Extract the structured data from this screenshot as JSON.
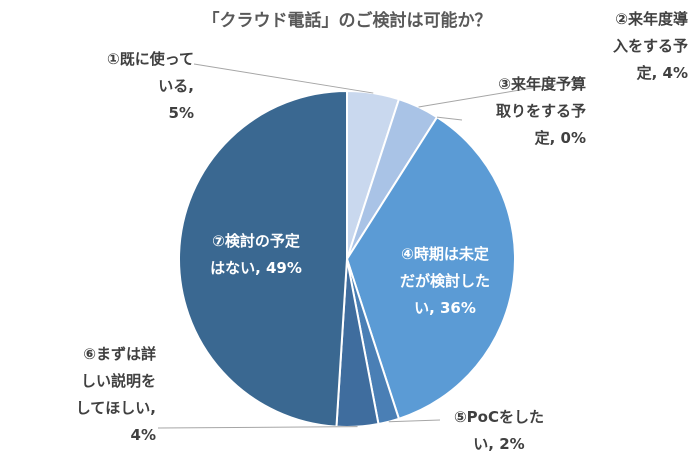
{
  "chart_data": {
    "type": "pie",
    "title": "「クラウド電話」のご検討は可能か？",
    "slices": [
      {
        "label": "①既に使っている",
        "value": 5,
        "color": "#c9d8ee",
        "display": "①既に使って\nいる,\n5%"
      },
      {
        "label": "②来年度導入をする予定",
        "value": 4,
        "color": "#a9c3e6",
        "display": "②来年度導\n入をする予\n定, 4%"
      },
      {
        "label": "③来年度予算取りをする予定",
        "value": 0,
        "color": "#8db2e0",
        "display": "③来年度予算\n取りをする予\n定, 0%"
      },
      {
        "label": "④時期は未定だが検討したい",
        "value": 36,
        "color": "#5b9bd5",
        "display": "④時期は未定\nだが検討した\nい, 36%"
      },
      {
        "label": "⑤PoCをしたい",
        "value": 2,
        "color": "#4a7fb5",
        "display": "⑤PoCをした\nい, 2%"
      },
      {
        "label": "⑥まずは詳しい説明をしてほしい",
        "value": 4,
        "color": "#3f6d9e",
        "display": "⑥まずは詳\nしい説明を\nしてほしい,\n4%"
      },
      {
        "label": "⑦検討の予定はない",
        "value": 49,
        "color": "#3a6891",
        "display": "⑦検討の予定\nはない, 49%"
      }
    ]
  }
}
